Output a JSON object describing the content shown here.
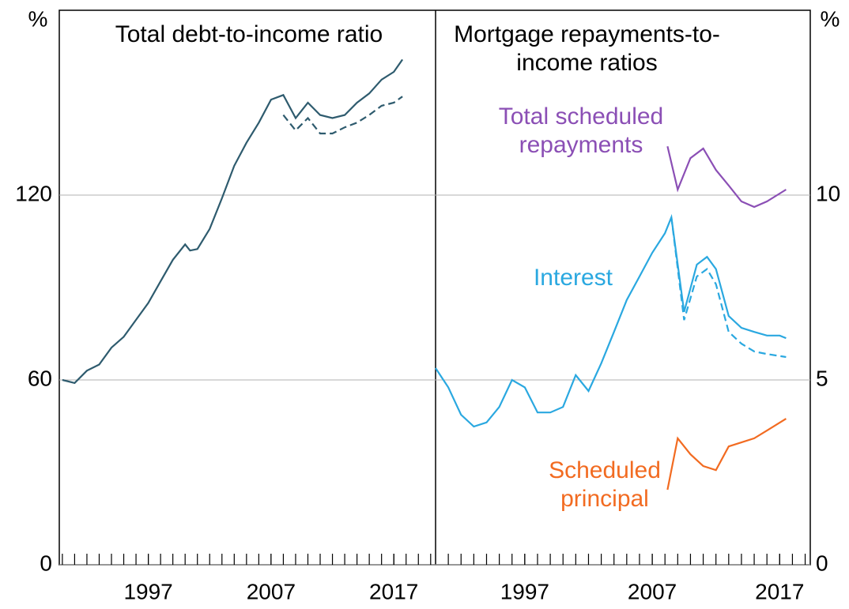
{
  "chart_data": [
    {
      "type": "line",
      "title": "Total debt-to-income ratio",
      "unit": "%",
      "axis_side": "left",
      "xlim": [
        1989.75,
        2020.4
      ],
      "xticks": [
        1997,
        2007,
        2017
      ],
      "ylim": [
        0,
        180
      ],
      "yticks": [
        0,
        60,
        120
      ],
      "grid": true,
      "series": [
        {
          "color": "#2e5b6e",
          "dashed": false,
          "x": [
            1990,
            1991,
            1992,
            1993,
            1994,
            1995,
            1996,
            1997,
            1998,
            1999,
            2000,
            2000.4,
            2001,
            2002,
            2003,
            2004,
            2005,
            2006,
            2007,
            2008,
            2009,
            2010,
            2011,
            2012,
            2013,
            2014,
            2015,
            2016,
            2017,
            2017.7
          ],
          "values": [
            60,
            59,
            63,
            65,
            70.5,
            74,
            79.5,
            85,
            92,
            99,
            104,
            102,
            102.5,
            109,
            119,
            129.5,
            137,
            143.5,
            151,
            152.5,
            145,
            150,
            146,
            145,
            146,
            150,
            153,
            157.5,
            160,
            164
          ]
        },
        {
          "color": "#2e5b6e",
          "dashed": true,
          "x": [
            2008,
            2009,
            2010,
            2011,
            2012,
            2013,
            2014,
            2015,
            2016,
            2017,
            2017.7
          ],
          "values": [
            146,
            141,
            145,
            140,
            140,
            142,
            143.5,
            146,
            149,
            150,
            152
          ]
        }
      ]
    },
    {
      "type": "line",
      "title": "Mortgage repayments-to-income ratios",
      "unit": "%",
      "axis_side": "right",
      "xlim": [
        1990,
        2019.4
      ],
      "xticks": [
        1997,
        2007,
        2017
      ],
      "ylim": [
        0,
        15
      ],
      "yticks": [
        0,
        5,
        10
      ],
      "grid": true,
      "series": [
        {
          "name": "Interest",
          "color": "#2aa8e0",
          "dashed": false,
          "x": [
            1990,
            1991,
            1992,
            1993,
            1994,
            1995,
            1996,
            1997,
            1998,
            1999,
            2000,
            2001,
            2002,
            2003,
            2004,
            2005,
            2006,
            2007,
            2008,
            2008.5,
            2009.5,
            2010.5,
            2011.3,
            2012,
            2013,
            2014,
            2015,
            2016,
            2017,
            2017.5
          ],
          "values": [
            5.32,
            4.8,
            4.06,
            3.74,
            3.85,
            4.27,
            5.0,
            4.8,
            4.12,
            4.12,
            4.27,
            5.13,
            4.7,
            5.45,
            6.3,
            7.16,
            7.8,
            8.44,
            8.97,
            9.4,
            6.84,
            8.12,
            8.33,
            8.0,
            6.73,
            6.41,
            6.3,
            6.2,
            6.2,
            6.13
          ]
        },
        {
          "color": "#2aa8e0",
          "dashed": true,
          "x": [
            2008.5,
            2009.5,
            2010.5,
            2011.3,
            2012,
            2013,
            2014,
            2015,
            2016,
            2017.5
          ],
          "values": [
            9.4,
            6.62,
            7.8,
            8.0,
            7.59,
            6.3,
            5.98,
            5.77,
            5.7,
            5.62
          ]
        },
        {
          "name": "Total scheduled repayments",
          "color": "#8b4fb5",
          "dashed": false,
          "x": [
            2008.2,
            2009,
            2010,
            2011,
            2012,
            2013,
            2014,
            2015,
            2016,
            2017.5
          ],
          "values": [
            11.32,
            10.15,
            11.0,
            11.26,
            10.68,
            10.26,
            9.83,
            9.68,
            9.83,
            10.15
          ]
        },
        {
          "name": "Scheduled principal",
          "color": "#f26b21",
          "dashed": false,
          "x": [
            2008.2,
            2009,
            2010,
            2011,
            2012,
            2013,
            2014,
            2015,
            2016,
            2017.5
          ],
          "values": [
            2.03,
            3.42,
            2.99,
            2.67,
            2.56,
            3.2,
            3.31,
            3.42,
            3.63,
            3.95
          ]
        }
      ]
    }
  ]
}
